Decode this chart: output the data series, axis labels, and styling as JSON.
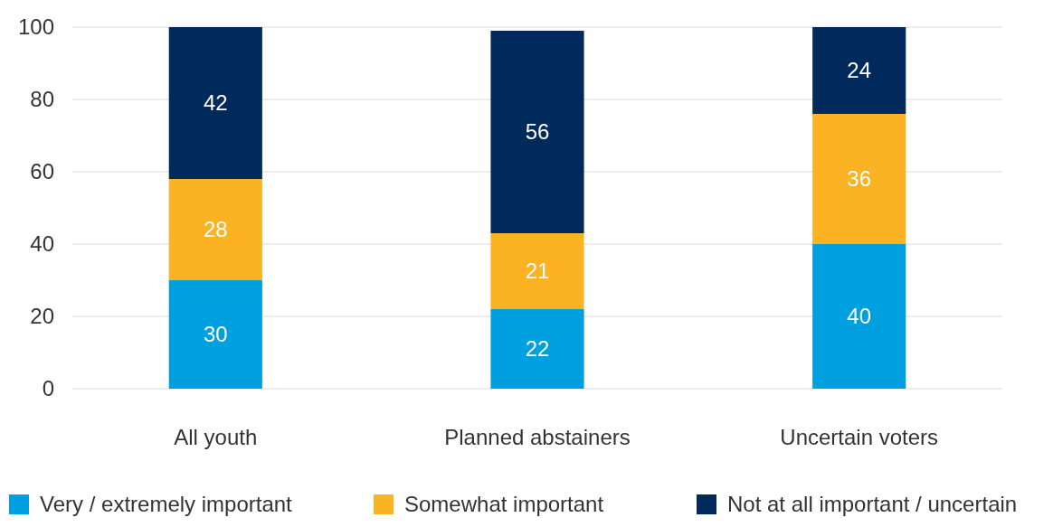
{
  "chart_data": {
    "type": "bar",
    "stacked": true,
    "categories": [
      "All youth",
      "Planned abstainers",
      "Uncertain voters"
    ],
    "series": [
      {
        "name": "Very / extremely important",
        "color": "#009fdf",
        "values": [
          30,
          22,
          40
        ]
      },
      {
        "name": "Somewhat important",
        "color": "#fbb323",
        "values": [
          28,
          21,
          36
        ]
      },
      {
        "name": "Not at all important / uncertain",
        "color": "#002a5c",
        "values": [
          42,
          56,
          24
        ]
      }
    ],
    "ylim": [
      0,
      100
    ],
    "yticks": [
      0,
      20,
      40,
      60,
      80,
      100
    ],
    "grid": "y",
    "legend": "bottom",
    "data_labels": true
  }
}
